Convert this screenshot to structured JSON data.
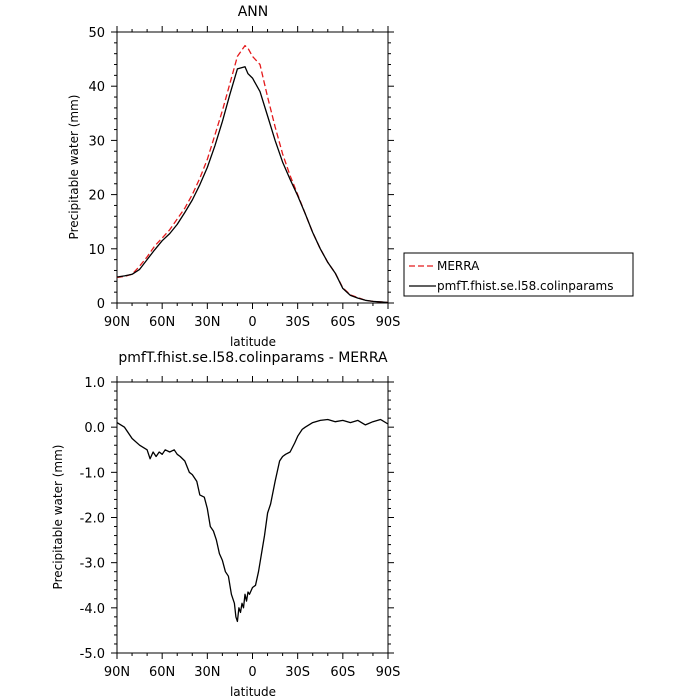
{
  "chart_data": [
    {
      "type": "line",
      "title": "ANN",
      "xlabel": "latitude",
      "ylabel": "Precipitable water (mm)",
      "x_ticks": [
        "90N",
        "60N",
        "30N",
        "0",
        "30S",
        "60S",
        "90S"
      ],
      "x_tick_values": [
        90,
        60,
        30,
        0,
        -30,
        -60,
        -90
      ],
      "xlim": [
        90,
        -90
      ],
      "y_ticks": [
        "0",
        "10",
        "20",
        "30",
        "40",
        "50"
      ],
      "y_tick_values": [
        0,
        10,
        20,
        30,
        40,
        50
      ],
      "ylim": [
        0,
        50
      ],
      "legend_position": "right",
      "series": [
        {
          "name": "MERRA",
          "color": "#e41a1c",
          "dash": "dashed",
          "x": [
            90,
            85,
            80,
            75,
            70,
            65,
            60,
            55,
            50,
            45,
            40,
            35,
            30,
            25,
            20,
            15,
            10,
            5,
            3,
            0,
            -5,
            -10,
            -15,
            -20,
            -25,
            -30,
            -35,
            -40,
            -45,
            -50,
            -55,
            -60,
            -65,
            -70,
            -75,
            -80,
            -85,
            -90
          ],
          "y": [
            4.7,
            4.9,
            5.3,
            6.8,
            8.5,
            10.5,
            12.0,
            13.5,
            15.5,
            17.5,
            20.0,
            23.0,
            26.5,
            31.0,
            35.5,
            40.5,
            45.5,
            47.5,
            47.0,
            45.5,
            44.0,
            38.0,
            32.5,
            27.5,
            23.5,
            20.0,
            16.5,
            13.0,
            10.0,
            7.5,
            5.5,
            2.8,
            1.5,
            1.0,
            0.5,
            0.3,
            0.2,
            0.1
          ]
        },
        {
          "name": "pmfT.fhist.se.l58.colinparams",
          "color": "#000000",
          "dash": "solid",
          "x": [
            90,
            85,
            80,
            75,
            70,
            65,
            60,
            55,
            50,
            45,
            40,
            35,
            30,
            25,
            20,
            15,
            10,
            5,
            3,
            0,
            -5,
            -10,
            -15,
            -20,
            -25,
            -30,
            -35,
            -40,
            -45,
            -50,
            -55,
            -60,
            -65,
            -70,
            -75,
            -80,
            -85,
            -90
          ],
          "y": [
            4.8,
            5.0,
            5.3,
            6.2,
            8.0,
            9.8,
            11.5,
            12.8,
            14.5,
            16.7,
            19.0,
            21.8,
            25.0,
            29.0,
            33.5,
            38.5,
            43.2,
            43.6,
            42.3,
            41.5,
            39.0,
            34.5,
            30.0,
            26.0,
            22.8,
            19.8,
            16.5,
            13.0,
            10.0,
            7.5,
            5.5,
            2.7,
            1.4,
            0.9,
            0.5,
            0.3,
            0.2,
            0.1
          ]
        }
      ]
    },
    {
      "type": "line",
      "title": "pmfT.fhist.se.l58.colinparams - MERRA",
      "xlabel": "latitude",
      "ylabel": "Precipitable water (mm)",
      "x_ticks": [
        "90N",
        "60N",
        "30N",
        "0",
        "30S",
        "60S",
        "90S"
      ],
      "x_tick_values": [
        90,
        60,
        30,
        0,
        -30,
        -60,
        -90
      ],
      "xlim": [
        90,
        -90
      ],
      "y_ticks": [
        "1.0",
        "0.0",
        "-1.0",
        "-2.0",
        "-3.0",
        "-4.0",
        "-5.0"
      ],
      "y_tick_values": [
        1,
        0,
        -1,
        -2,
        -3,
        -4,
        -5
      ],
      "ylim": [
        -5,
        1
      ],
      "series": [
        {
          "color": "#000000",
          "dash": "solid",
          "x": [
            90,
            85,
            80,
            75,
            70,
            68,
            66,
            64,
            62,
            60,
            58,
            55,
            52,
            50,
            48,
            45,
            42,
            40,
            37,
            35,
            32,
            30,
            28,
            26,
            24,
            22,
            20,
            18,
            16,
            15,
            14,
            12,
            11,
            10,
            9,
            8,
            7,
            6,
            5,
            4,
            3,
            2,
            0,
            -2,
            -4,
            -5,
            -6,
            -8,
            -10,
            -12,
            -15,
            -18,
            -20,
            -22,
            -25,
            -28,
            -30,
            -33,
            -35,
            -40,
            -45,
            -50,
            -55,
            -60,
            -65,
            -70,
            -75,
            -80,
            -85,
            -90
          ],
          "y": [
            0.1,
            0.0,
            -0.25,
            -0.4,
            -0.5,
            -0.7,
            -0.55,
            -0.65,
            -0.55,
            -0.6,
            -0.5,
            -0.55,
            -0.5,
            -0.6,
            -0.65,
            -0.75,
            -1.0,
            -1.05,
            -1.2,
            -1.5,
            -1.55,
            -1.8,
            -2.2,
            -2.3,
            -2.5,
            -2.8,
            -2.95,
            -3.2,
            -3.3,
            -3.5,
            -3.7,
            -3.9,
            -4.2,
            -4.3,
            -4.0,
            -4.1,
            -3.9,
            -4.0,
            -3.7,
            -3.85,
            -3.65,
            -3.7,
            -3.55,
            -3.5,
            -3.2,
            -3.0,
            -2.8,
            -2.4,
            -1.9,
            -1.7,
            -1.2,
            -0.75,
            -0.65,
            -0.6,
            -0.55,
            -0.35,
            -0.2,
            -0.05,
            0.0,
            0.1,
            0.15,
            0.17,
            0.12,
            0.15,
            0.1,
            0.15,
            0.05,
            0.12,
            0.17,
            0.07
          ]
        }
      ]
    }
  ]
}
